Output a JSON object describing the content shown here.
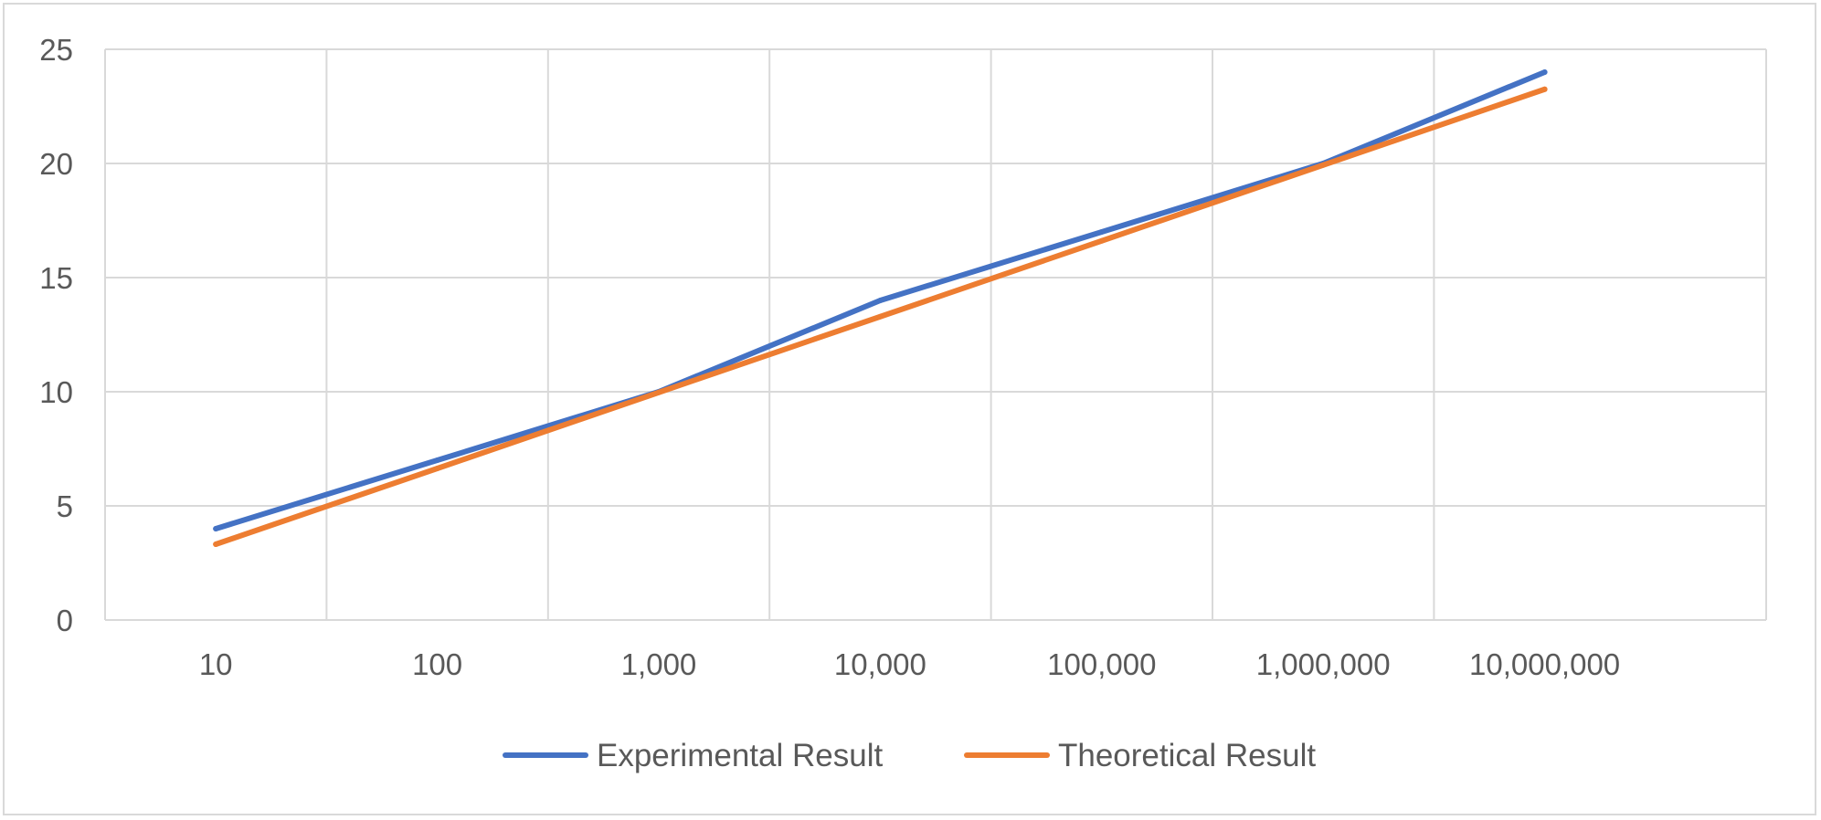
{
  "chart_data": {
    "type": "line",
    "title": "",
    "xlabel": "",
    "ylabel": "",
    "x_scale": "log",
    "categories": [
      "10",
      "100",
      "1,000",
      "10,000",
      "100,000",
      "1,000,000",
      "10,000,000"
    ],
    "x": [
      10,
      100,
      1000,
      10000,
      100000,
      1000000,
      10000000
    ],
    "ylim": [
      0,
      25
    ],
    "y_ticks": [
      0,
      5,
      10,
      15,
      20,
      25
    ],
    "grid": true,
    "legend_position": "bottom",
    "series": [
      {
        "name": "Experimental Result",
        "color": "#4472C4",
        "values": [
          4,
          7,
          10,
          14,
          17,
          20,
          24
        ]
      },
      {
        "name": "Theoretical Result",
        "color": "#ED7D31",
        "values": [
          3.32,
          6.64,
          9.97,
          13.29,
          16.61,
          19.93,
          23.25
        ]
      }
    ]
  }
}
